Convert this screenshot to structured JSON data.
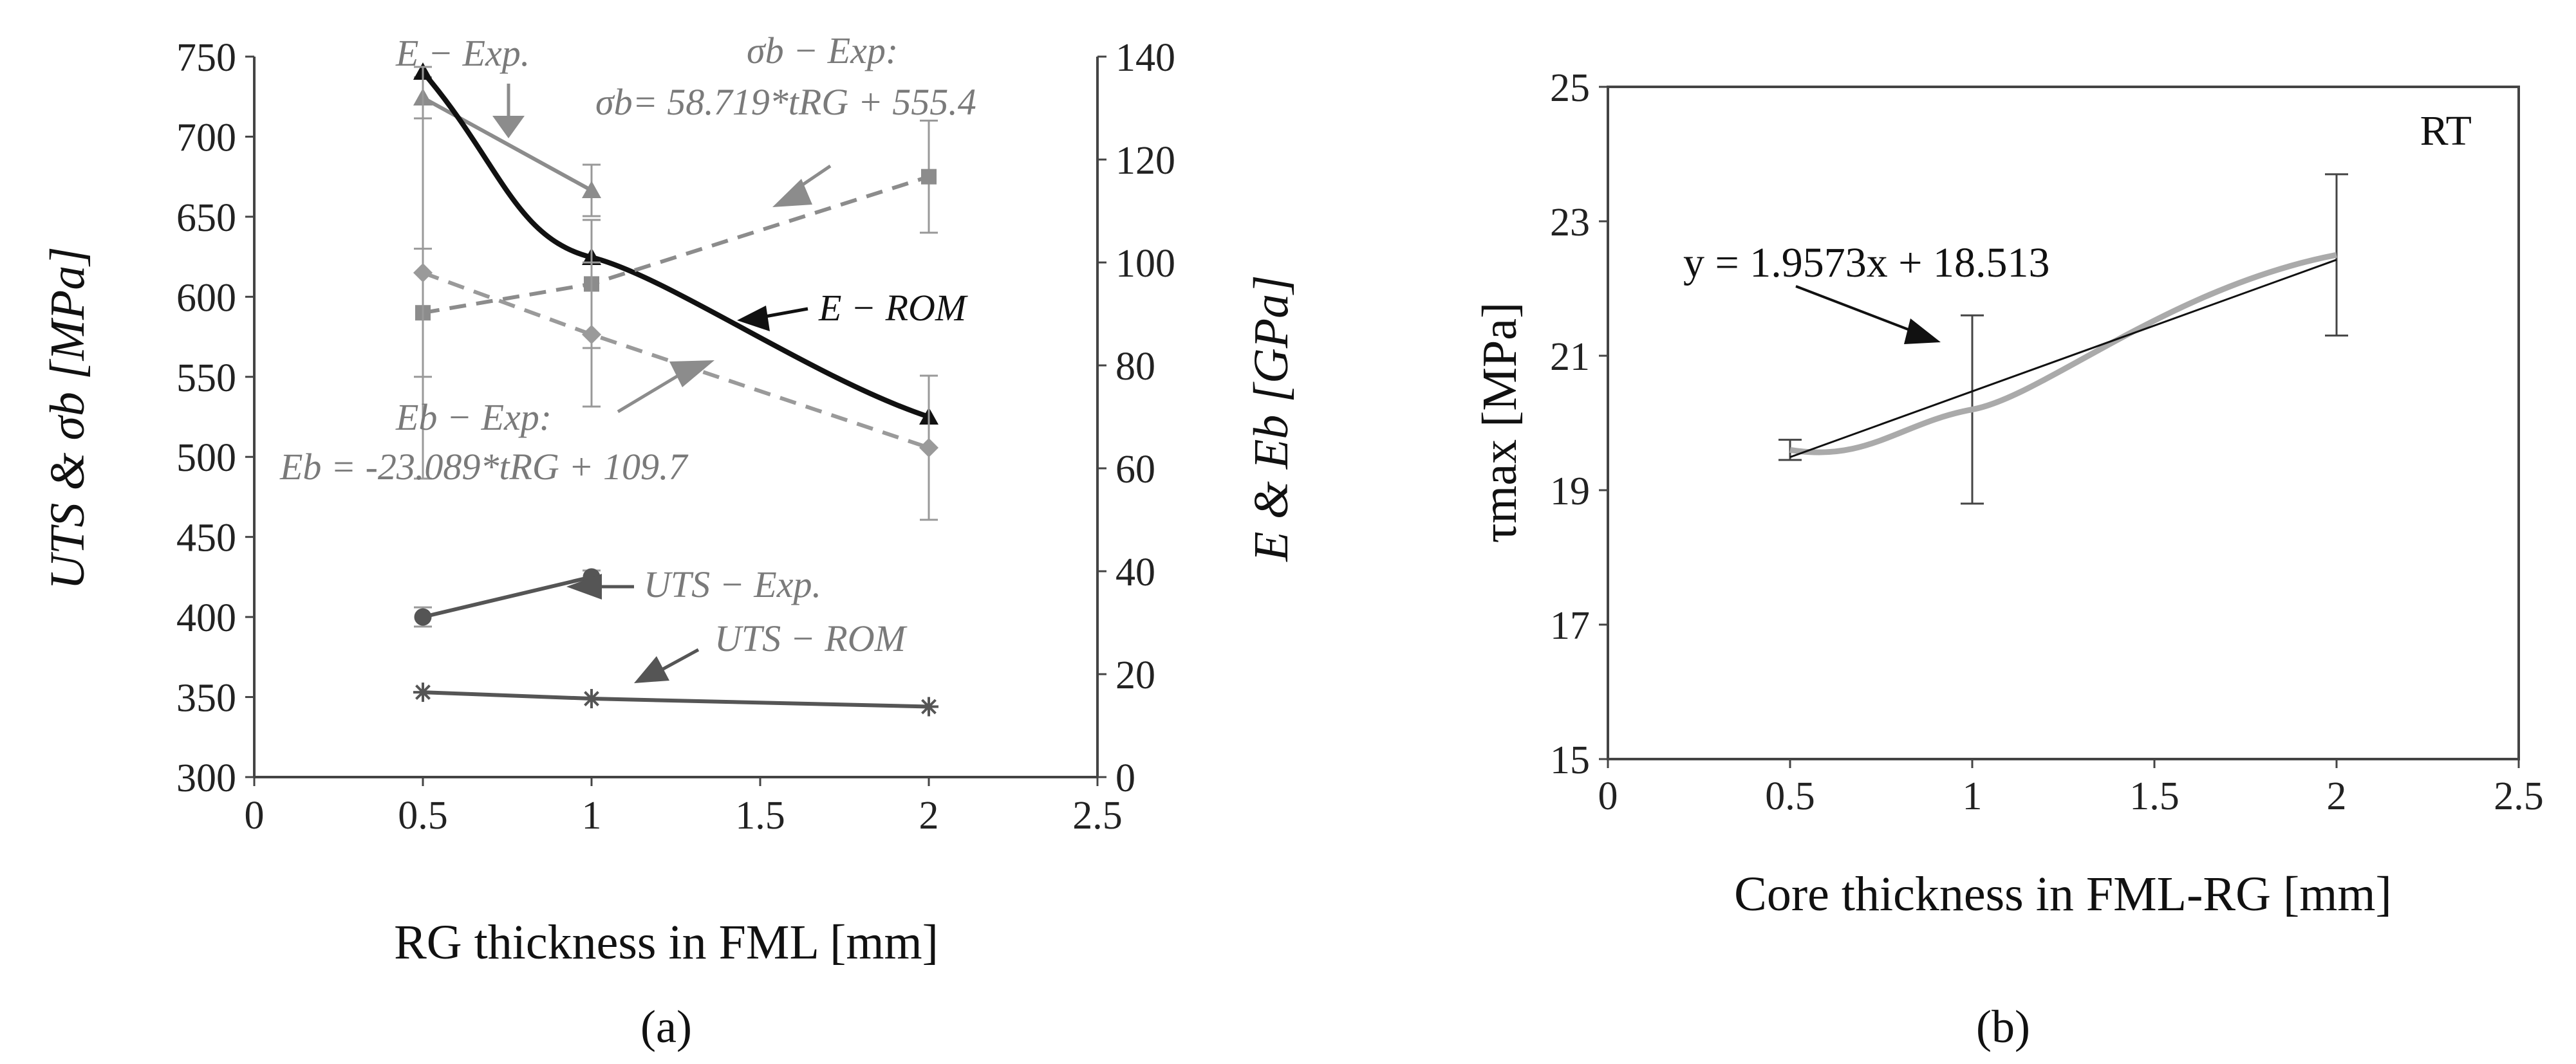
{
  "chart_data": [
    {
      "type": "line",
      "panel_label": "(a)",
      "xlabel": "RG thickness in FML  [mm]",
      "ylabel_left": "UTS & σb [MPa]",
      "ylabel_right": "E & Eb [GPa]",
      "xlim": [
        0,
        2.5
      ],
      "ylim_left": [
        300,
        750
      ],
      "ylim_right": [
        0,
        140
      ],
      "x_ticks": [
        "0",
        "0.5",
        "1",
        "1.5",
        "2",
        "2.5"
      ],
      "y_ticks_left": [
        "300",
        "350",
        "400",
        "450",
        "500",
        "550",
        "600",
        "650",
        "700",
        "750"
      ],
      "y_ticks_right": [
        "0",
        "20",
        "40",
        "60",
        "80",
        "100",
        "120",
        "140"
      ],
      "grid": false,
      "series": [
        {
          "name": "E − Exp.",
          "axis": "right",
          "color": "#8c8c8c",
          "marker": "triangle",
          "style": "solid",
          "x": [
            0.5,
            1
          ],
          "y": [
            132,
            114
          ],
          "err": [
            4,
            5
          ]
        },
        {
          "name": "E − ROM",
          "axis": "right",
          "color": "#111111",
          "marker": "triangle",
          "style": "solid",
          "x": [
            0.5,
            1,
            2
          ],
          "y": [
            137,
            101,
            70
          ],
          "err": [
            0,
            0,
            0
          ]
        },
        {
          "name": "σb − Exp",
          "axis": "left",
          "color": "#8c8c8c",
          "marker": "square",
          "style": "dashed",
          "x": [
            0.5,
            1,
            2
          ],
          "y": [
            590,
            608,
            675
          ],
          "err": [
            40,
            40,
            35
          ]
        },
        {
          "name": "Eb − Exp",
          "axis": "right",
          "color": "#9a9a9a",
          "marker": "diamond",
          "style": "dashed",
          "x": [
            0.5,
            1,
            2
          ],
          "y": [
            98,
            86,
            64
          ],
          "err": [
            40,
            14,
            14
          ]
        },
        {
          "name": "UTS − Exp.",
          "axis": "left",
          "color": "#555555",
          "marker": "circle",
          "style": "solid",
          "x": [
            0.5,
            1
          ],
          "y": [
            400,
            425
          ],
          "err": [
            6,
            4
          ]
        },
        {
          "name": "UTS − ROM",
          "axis": "left",
          "color": "#555555",
          "marker": "asterisk",
          "style": "solid",
          "x": [
            0.5,
            1,
            2
          ],
          "y": [
            353,
            349,
            344
          ],
          "err": [
            0,
            0,
            0
          ]
        }
      ],
      "annotations": {
        "e_exp": "E − Exp.",
        "sigma_exp_title": "σb − Exp:",
        "sigma_exp_eq": "σb= 58.719*tRG + 555.4",
        "e_rom": "E − ROM",
        "eb_exp_title": "Eb − Exp:",
        "eb_exp_eq": "Eb = -23.089*tRG + 109.7",
        "uts_exp": "UTS − Exp.",
        "uts_rom": "UTS − ROM"
      }
    },
    {
      "type": "line",
      "panel_label": "(b)",
      "xlabel": "Core thickness in FML-RG [mm]",
      "ylabel": "τmax [MPa]",
      "xlim": [
        0,
        2.5
      ],
      "ylim": [
        15,
        25
      ],
      "x_ticks": [
        "0",
        "0.5",
        "1",
        "1.5",
        "2",
        "2.5"
      ],
      "y_ticks": [
        "15",
        "17",
        "19",
        "21",
        "23",
        "25"
      ],
      "grid": false,
      "corner_label": "RT",
      "series": [
        {
          "name": "τmax",
          "color": "#aaaaaa",
          "x": [
            0.5,
            1,
            2
          ],
          "y": [
            19.6,
            20.2,
            22.5
          ],
          "err": [
            0.15,
            1.4,
            1.2
          ]
        }
      ],
      "trendline": {
        "slope": 1.9573,
        "intercept": 18.513,
        "color": "#111111"
      },
      "trendline_label": "y = 1.9573x + 18.513"
    }
  ]
}
